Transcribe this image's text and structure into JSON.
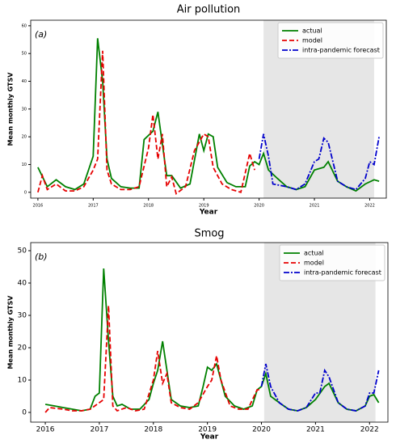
{
  "chart_data": [
    {
      "type": "line",
      "title": "Air pollution",
      "annotation": "(a)",
      "xlabel": "Year",
      "ylabel": "Mean monthly GTSV",
      "xlim": [
        2015.87,
        2022.3
      ],
      "ylim": [
        -2.1,
        62
      ],
      "xticks": [
        2016,
        2017,
        2018,
        2019,
        2020,
        2021,
        2022
      ],
      "yticks": [
        0,
        10,
        20,
        30,
        40,
        50,
        60
      ],
      "shade": [
        2020.08,
        2022.08
      ],
      "shade_color": "#e6e6e6",
      "legend": "upper right",
      "series": [
        {
          "name": "actual",
          "color": "#008000",
          "style": "solid",
          "x": [
            2016.0,
            2016.17,
            2016.33,
            2016.5,
            2016.67,
            2016.83,
            2017.0,
            2017.08,
            2017.17,
            2017.25,
            2017.33,
            2017.5,
            2017.67,
            2017.83,
            2017.92,
            2018.08,
            2018.17,
            2018.33,
            2018.42,
            2018.58,
            2018.75,
            2018.92,
            2019.0,
            2019.08,
            2019.17,
            2019.25,
            2019.42,
            2019.58,
            2019.75,
            2019.83,
            2019.92,
            2020.0,
            2020.08,
            2020.17,
            2020.33,
            2020.5,
            2020.67,
            2020.83,
            2021.0,
            2021.17,
            2021.25,
            2021.42,
            2021.58,
            2021.75,
            2021.92,
            2022.08,
            2022.17
          ],
          "values": [
            9,
            2,
            4.5,
            2,
            1,
            3,
            13,
            55.5,
            40,
            12,
            5,
            2,
            1.5,
            1.5,
            19,
            22,
            29,
            6,
            6,
            1.5,
            3,
            21,
            15,
            21,
            20,
            9,
            3.5,
            2,
            2,
            9.5,
            11,
            10,
            14,
            8,
            5,
            2,
            1,
            2,
            8,
            9,
            11,
            4,
            2,
            0.5,
            3,
            4.5,
            4
          ]
        },
        {
          "name": "model",
          "color": "#e60000",
          "style": "dashed",
          "x": [
            2016.0,
            2016.08,
            2016.17,
            2016.33,
            2016.5,
            2016.67,
            2016.83,
            2017.0,
            2017.08,
            2017.17,
            2017.25,
            2017.33,
            2017.5,
            2017.67,
            2017.83,
            2018.0,
            2018.08,
            2018.17,
            2018.25,
            2018.33,
            2018.42,
            2018.5,
            2018.67,
            2018.83,
            2019.0,
            2019.08,
            2019.17,
            2019.33,
            2019.5,
            2019.67,
            2019.83,
            2019.92
          ],
          "values": [
            0,
            6,
            1,
            3,
            0.5,
            0.5,
            2,
            8,
            12,
            51,
            8,
            3,
            1,
            1,
            2,
            16,
            28,
            12,
            21,
            2,
            5.5,
            -0.5,
            2,
            15,
            21,
            20,
            9,
            3,
            1,
            0,
            14,
            8
          ]
        },
        {
          "name": "intra-pandemic forecast",
          "color": "#0000cc",
          "style": "dashdot",
          "x": [
            2020.0,
            2020.08,
            2020.17,
            2020.25,
            2020.5,
            2020.67,
            2020.83,
            2021.0,
            2021.08,
            2021.17,
            2021.25,
            2021.42,
            2021.58,
            2021.75,
            2021.92,
            2022.0,
            2022.08,
            2022.17
          ],
          "values": [
            12,
            21,
            13,
            3,
            2,
            1,
            3,
            11,
            12,
            19.5,
            18,
            4,
            2,
            1,
            5,
            11,
            10,
            20
          ]
        }
      ]
    },
    {
      "type": "line",
      "title": "Smog",
      "annotation": "(b)",
      "xlabel": "Year",
      "ylabel": "Mean monthly GTSV",
      "xlim": [
        2015.73,
        2022.34
      ],
      "ylim": [
        -3,
        52.5
      ],
      "xticks": [
        2016,
        2017,
        2018,
        2019,
        2020,
        2021,
        2022
      ],
      "yticks": [
        0,
        10,
        20,
        30,
        40,
        50
      ],
      "shade": [
        2020.05,
        2022.11
      ],
      "shade_color": "#e6e6e6",
      "legend": "upper right",
      "series": [
        {
          "name": "actual",
          "color": "#008000",
          "style": "solid",
          "x": [
            2016.0,
            2016.17,
            2016.33,
            2016.5,
            2016.67,
            2016.83,
            2016.92,
            2017.0,
            2017.08,
            2017.17,
            2017.25,
            2017.33,
            2017.42,
            2017.58,
            2017.75,
            2017.92,
            2018.0,
            2018.08,
            2018.17,
            2018.33,
            2018.5,
            2018.67,
            2018.83,
            2018.92,
            2019.0,
            2019.08,
            2019.17,
            2019.33,
            2019.5,
            2019.67,
            2019.83,
            2019.92,
            2020.0,
            2020.08,
            2020.17,
            2020.33,
            2020.5,
            2020.67,
            2020.83,
            2021.0,
            2021.17,
            2021.25,
            2021.42,
            2021.58,
            2021.75,
            2021.92,
            2022.0,
            2022.08,
            2022.17
          ],
          "values": [
            2.5,
            2,
            1.5,
            1,
            0.5,
            1,
            5,
            6,
            44.5,
            22,
            5,
            2,
            2.5,
            1,
            1,
            4,
            9,
            13,
            22,
            4,
            2,
            1.5,
            2,
            8,
            14,
            13,
            15,
            5,
            2,
            1,
            2,
            7,
            8,
            12,
            5,
            3,
            1,
            0.5,
            1.5,
            4,
            8,
            9,
            3,
            1,
            0.5,
            2,
            5,
            5.5,
            3
          ]
        },
        {
          "name": "model",
          "color": "#e60000",
          "style": "dashed",
          "x": [
            2016.0,
            2016.08,
            2016.33,
            2016.5,
            2016.67,
            2016.83,
            2017.0,
            2017.08,
            2017.17,
            2017.25,
            2017.33,
            2017.5,
            2017.67,
            2017.83,
            2018.0,
            2018.08,
            2018.17,
            2018.25,
            2018.33,
            2018.5,
            2018.67,
            2018.83,
            2019.0,
            2019.08,
            2019.17,
            2019.25,
            2019.42,
            2019.58,
            2019.75,
            2019.92,
            2020.0
          ],
          "values": [
            0,
            1.5,
            1,
            0.5,
            0.5,
            1,
            3,
            4,
            33,
            2,
            0.5,
            1.5,
            0.5,
            1,
            10,
            19,
            9,
            12,
            3,
            1.5,
            1,
            3,
            8,
            10,
            17.5,
            10,
            2,
            1,
            1,
            7,
            7
          ]
        },
        {
          "name": "intra-pandemic forecast",
          "color": "#0000cc",
          "style": "dashdot",
          "x": [
            2020.0,
            2020.08,
            2020.17,
            2020.33,
            2020.5,
            2020.67,
            2020.83,
            2021.0,
            2021.08,
            2021.17,
            2021.25,
            2021.42,
            2021.58,
            2021.75,
            2021.92,
            2022.0,
            2022.08,
            2022.17
          ],
          "values": [
            8,
            15,
            8,
            3,
            1,
            0.5,
            1.5,
            6,
            6,
            13,
            11,
            3,
            1,
            0.5,
            2,
            6,
            6,
            13
          ]
        }
      ]
    }
  ]
}
